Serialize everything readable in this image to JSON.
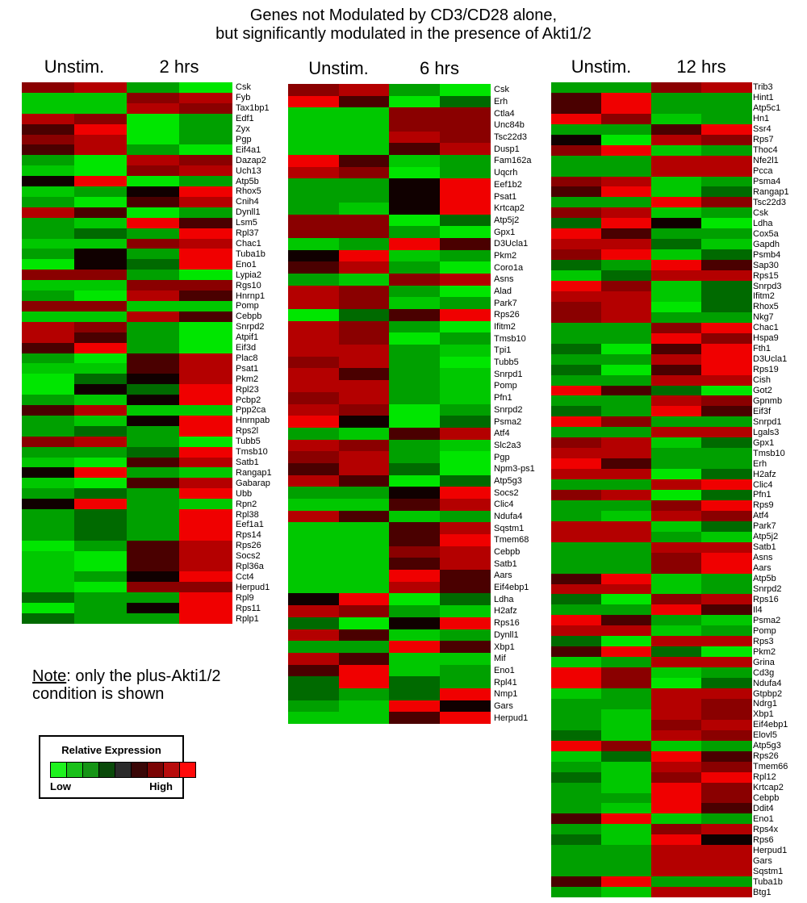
{
  "title": {
    "line1": "Genes not Modulated by CD3/CD28 alone,",
    "line2": "but significantly modulated in the presence of Akti1/2"
  },
  "note": {
    "prefix": "Note",
    "text": ": only the plus-Akti1/2",
    "line2": "condition is shown"
  },
  "legend": {
    "title": "Relative Expression",
    "low": "Low",
    "high": "High",
    "colors": [
      "#1ef21e",
      "#19c019",
      "#169416",
      "#0a4a0a",
      "#2b2b2b",
      "#3a0707",
      "#7a0404",
      "#b80c0c",
      "#ff0a0a"
    ]
  },
  "color_scale": {
    "-4": "#00e600",
    "-3": "#00c800",
    "-2": "#00a000",
    "-1": "#006a00",
    "0": "#100000",
    "1": "#4a0000",
    "2": "#8a0000",
    "3": "#b40000",
    "4": "#f00000"
  },
  "chart_data": [
    {
      "type": "heatmap",
      "title": "2 hrs",
      "columns": [
        "Unstim.",
        "Unstim.",
        "2 hrs",
        "2 hrs"
      ],
      "column_headers": [
        "Unstim.",
        "2 hrs"
      ],
      "value_range": [
        -4,
        4
      ],
      "rows": [
        "Csk",
        "Fyb",
        "Tax1bp1",
        "Edf1",
        "Zyx",
        "Pgp",
        "Eif4a1",
        "Dazap2",
        "Uch13",
        "Atp5b",
        "Rhox5",
        "Cnih4",
        "Dynll1",
        "Lsm5",
        "Rpl37",
        "Chac1",
        "Tuba1b",
        "Eno1",
        "Lypia2",
        "Rgs10",
        "Hnrnp1",
        "Pomp",
        "Cebpb",
        "Snrpd2",
        "Atpif1",
        "Eif3d",
        "Plac8",
        "Psat1",
        "Pkm2",
        "Rpl23",
        "Pcbp2",
        "Ppp2ca",
        "Hnrnpab",
        "Rps2l",
        "Tubb5",
        "Tmsb10",
        "Satb1",
        "Rangap1",
        "Gabarap",
        "Ubb",
        "Rpn2",
        "Rpl38",
        "Eef1a1",
        "Rps14",
        "Rps26",
        "Socs2",
        "Rpl36a",
        "Cct4",
        "Herpud1",
        "Rpl9",
        "Rps11",
        "Rplp1"
      ],
      "values": [
        [
          2,
          3,
          -2,
          -4
        ],
        [
          -3,
          -3,
          2,
          3
        ],
        [
          -3,
          -3,
          3,
          2
        ],
        [
          3,
          2,
          -4,
          -2
        ],
        [
          1,
          4,
          -4,
          -2
        ],
        [
          2,
          3,
          -4,
          -2
        ],
        [
          1,
          3,
          -2,
          -4
        ],
        [
          -2,
          -4,
          3,
          2
        ],
        [
          -3,
          -4,
          2,
          3
        ],
        [
          0,
          4,
          -4,
          -2
        ],
        [
          -3,
          -2,
          0,
          4
        ],
        [
          -2,
          -4,
          1,
          3
        ],
        [
          3,
          1,
          -4,
          -2
        ],
        [
          -2,
          -3,
          4,
          1
        ],
        [
          -2,
          -1,
          -2,
          4
        ],
        [
          -3,
          -3,
          2,
          3
        ],
        [
          -2,
          0,
          -2,
          4
        ],
        [
          -4,
          0,
          -1,
          4
        ],
        [
          2,
          2,
          -2,
          -4
        ],
        [
          -3,
          -3,
          2,
          2
        ],
        [
          -2,
          -4,
          3,
          1
        ],
        [
          2,
          2,
          -3,
          -3
        ],
        [
          -3,
          -3,
          3,
          1
        ],
        [
          3,
          2,
          -2,
          -4
        ],
        [
          3,
          1,
          -2,
          -4
        ],
        [
          1,
          4,
          -2,
          -4
        ],
        [
          -2,
          -4,
          1,
          3
        ],
        [
          -3,
          -3,
          1,
          3
        ],
        [
          -4,
          -1,
          0,
          3
        ],
        [
          -4,
          0,
          -1,
          4
        ],
        [
          -2,
          -3,
          0,
          4
        ],
        [
          1,
          3,
          -3,
          -3
        ],
        [
          -2,
          -3,
          0,
          4
        ],
        [
          -2,
          -1,
          -2,
          4
        ],
        [
          2,
          3,
          -2,
          -4
        ],
        [
          -2,
          -2,
          -1,
          4
        ],
        [
          -3,
          -4,
          1,
          3
        ],
        [
          0,
          4,
          -2,
          -3
        ],
        [
          -3,
          -4,
          1,
          3
        ],
        [
          -2,
          -1,
          -2,
          4
        ],
        [
          0,
          4,
          -2,
          -3
        ],
        [
          -2,
          -1,
          -2,
          4
        ],
        [
          -2,
          -1,
          -2,
          4
        ],
        [
          -2,
          -1,
          -2,
          4
        ],
        [
          -4,
          -2,
          1,
          3
        ],
        [
          -3,
          -4,
          1,
          3
        ],
        [
          -3,
          -4,
          1,
          3
        ],
        [
          -3,
          -2,
          0,
          4
        ],
        [
          -3,
          -4,
          2,
          2
        ],
        [
          -1,
          -2,
          -2,
          4
        ],
        [
          -4,
          -2,
          0,
          4
        ],
        [
          -1,
          -2,
          -2,
          4
        ]
      ]
    },
    {
      "type": "heatmap",
      "title": "6 hrs",
      "columns": [
        "Unstim.",
        "Unstim.",
        "6 hrs",
        "6 hrs"
      ],
      "column_headers": [
        "Unstim.",
        "6 hrs"
      ],
      "value_range": [
        -4,
        4
      ],
      "rows": [
        "Csk",
        "Erh",
        "Ctla4",
        "Unc84b",
        "Tsc22d3",
        "Dusp1",
        "Fam162a",
        "Uqcrh",
        "Eef1b2",
        "Psat1",
        "Krtcap2",
        "Atp5j2",
        "Gpx1",
        "D3Ucla1",
        "Pkm2",
        "Coro1a",
        "Asns",
        "Alad",
        "Park7",
        "Rps26",
        "Ifitm2",
        "Tmsb10",
        "Tpi1",
        "Tubb5",
        "Snrpd1",
        "Pomp",
        "Pfn1",
        "Snrpd2",
        "Psma2",
        "Atf4",
        "Slc2a3",
        "Pgp",
        "Npm3-ps1",
        "Atp5g3",
        "Socs2",
        "Clic4",
        "Ndufa4",
        "Sqstm1",
        "Tmem68",
        "Cebpb",
        "Satb1",
        "Aars",
        "Eif4ebp1",
        "Ldha",
        "H2afz",
        "Rps16",
        "Dynll1",
        "Xbp1",
        "Mif",
        "Eno1",
        "Rpl41",
        "Nmp1",
        "Gars",
        "Herpud1"
      ],
      "values": [
        [
          2,
          3,
          -2,
          -4
        ],
        [
          4,
          1,
          -4,
          -1
        ],
        [
          -3,
          -3,
          2,
          2
        ],
        [
          -3,
          -3,
          2,
          2
        ],
        [
          -3,
          -3,
          3,
          2
        ],
        [
          -3,
          -3,
          1,
          3
        ],
        [
          4,
          1,
          -3,
          -2
        ],
        [
          3,
          2,
          -4,
          -2
        ],
        [
          -2,
          -2,
          0,
          4
        ],
        [
          -2,
          -2,
          0,
          4
        ],
        [
          -2,
          -3,
          0,
          4
        ],
        [
          2,
          2,
          -4,
          -1
        ],
        [
          2,
          2,
          -2,
          -4
        ],
        [
          -3,
          -2,
          4,
          1
        ],
        [
          0,
          4,
          -3,
          -2
        ],
        [
          1,
          3,
          -2,
          -4
        ],
        [
          -2,
          -3,
          2,
          3
        ],
        [
          3,
          2,
          -2,
          -4
        ],
        [
          3,
          2,
          -3,
          -2
        ],
        [
          -4,
          -1,
          1,
          4
        ],
        [
          3,
          2,
          -2,
          -4
        ],
        [
          3,
          2,
          -4,
          -2
        ],
        [
          3,
          3,
          -2,
          -3
        ],
        [
          2,
          3,
          -2,
          -4
        ],
        [
          3,
          1,
          -2,
          -3
        ],
        [
          3,
          3,
          -2,
          -3
        ],
        [
          2,
          3,
          -2,
          -3
        ],
        [
          3,
          2,
          -4,
          -2
        ],
        [
          4,
          0,
          -4,
          -1
        ],
        [
          -2,
          -3,
          1,
          3
        ],
        [
          3,
          2,
          -2,
          -3
        ],
        [
          2,
          3,
          -2,
          -4
        ],
        [
          1,
          3,
          -1,
          -4
        ],
        [
          3,
          1,
          -4,
          -1
        ],
        [
          -2,
          -2,
          0,
          4
        ],
        [
          -3,
          -3,
          1,
          3
        ],
        [
          3,
          1,
          -3,
          -2
        ],
        [
          -3,
          -3,
          1,
          3
        ],
        [
          -3,
          -3,
          1,
          4
        ],
        [
          -3,
          -3,
          2,
          3
        ],
        [
          -3,
          -3,
          1,
          3
        ],
        [
          -3,
          -3,
          4,
          1
        ],
        [
          -3,
          -3,
          3,
          1
        ],
        [
          0,
          4,
          -4,
          -1
        ],
        [
          3,
          2,
          -2,
          -3
        ],
        [
          -1,
          -4,
          0,
          4
        ],
        [
          3,
          1,
          -3,
          -2
        ],
        [
          -2,
          -2,
          4,
          1
        ],
        [
          3,
          1,
          -3,
          -3
        ],
        [
          1,
          4,
          -3,
          -2
        ],
        [
          -1,
          4,
          -1,
          -2
        ],
        [
          -1,
          -2,
          -1,
          4
        ],
        [
          -2,
          -3,
          4,
          0
        ],
        [
          -3,
          -3,
          1,
          4
        ]
      ]
    },
    {
      "type": "heatmap",
      "title": "12 hrs",
      "columns": [
        "Unstim.",
        "Unstim.",
        "12 hrs",
        "12 hrs"
      ],
      "column_headers": [
        "Unstim.",
        "12 hrs"
      ],
      "value_range": [
        -4,
        4
      ],
      "rows": [
        "Trib3",
        "Hint1",
        "Atp5c1",
        "Hn1",
        "Ssr4",
        "Rps7",
        "Thoc4",
        "Nfe2l1",
        "Pcca",
        "Psma4",
        "Rangap1",
        "Tsc22d3",
        "Csk",
        "Ldha",
        "Cox5a",
        "Gapdh",
        "Psmb4",
        "Sap30",
        "Rps15",
        "Snrpd3",
        "Ifitm2",
        "Rhox5",
        "Nkg7",
        "Chac1",
        "Hspa9",
        "Fth1",
        "D3Ucla1",
        "Rps19",
        "Cish",
        "Got2",
        "Gpnmb",
        "Eif3f",
        "Snrpd1",
        "Lgals3",
        "Gpx1",
        "Tmsb10",
        "Erh",
        "H2afz",
        "Clic4",
        "Pfn1",
        "Rps9",
        "Atf4",
        "Park7",
        "Atp5j2",
        "Satb1",
        "Asns",
        "Aars",
        "Atp5b",
        "Snrpd2",
        "Rps16",
        "Il4",
        "Psma2",
        "Pomp",
        "Rps3",
        "Pkm2",
        "Grina",
        "Cd3g",
        "Ndufa4",
        "Gtpbp2",
        "Ndrg1",
        "Xbp1",
        "Eif4ebp1",
        "Elovl5",
        "Atp5g3",
        "Rps26",
        "Tmem66",
        "Rpl12",
        "Krtcap2",
        "Cebpb",
        "Ddit4",
        "Eno1",
        "Rps4x",
        "Rps6",
        "Herpud1",
        "Gars",
        "Sqstm1",
        "Tuba1b",
        "Btg1"
      ],
      "values": [
        [
          -2,
          -2,
          2,
          3
        ],
        [
          1,
          4,
          -2,
          -2
        ],
        [
          1,
          4,
          -2,
          -2
        ],
        [
          4,
          2,
          -3,
          -2
        ],
        [
          -2,
          -2,
          1,
          4
        ],
        [
          0,
          -4,
          3,
          2
        ],
        [
          2,
          4,
          -3,
          -2
        ],
        [
          -2,
          -2,
          3,
          3
        ],
        [
          -2,
          -2,
          3,
          3
        ],
        [
          2,
          3,
          -3,
          -2
        ],
        [
          1,
          4,
          -3,
          -1
        ],
        [
          -2,
          -2,
          4,
          2
        ],
        [
          2,
          3,
          -3,
          -2
        ],
        [
          -1,
          4,
          0,
          -4
        ],
        [
          4,
          1,
          -2,
          -2
        ],
        [
          3,
          3,
          -1,
          -3
        ],
        [
          2,
          4,
          -3,
          -1
        ],
        [
          -1,
          -2,
          4,
          1
        ],
        [
          -3,
          -1,
          3,
          3
        ],
        [
          4,
          2,
          -3,
          -1
        ],
        [
          3,
          3,
          -3,
          -1
        ],
        [
          2,
          3,
          -4,
          -1
        ],
        [
          2,
          3,
          -2,
          -2
        ],
        [
          -2,
          -2,
          2,
          4
        ],
        [
          -2,
          -2,
          4,
          2
        ],
        [
          -1,
          -4,
          1,
          4
        ],
        [
          -2,
          -2,
          3,
          4
        ],
        [
          -1,
          -4,
          1,
          4
        ],
        [
          -2,
          -2,
          3,
          3
        ],
        [
          4,
          1,
          -1,
          -4
        ],
        [
          -2,
          -2,
          3,
          2
        ],
        [
          -1,
          -2,
          4,
          1
        ],
        [
          4,
          2,
          -2,
          -2
        ],
        [
          -2,
          -2,
          3,
          3
        ],
        [
          2,
          3,
          -3,
          -1
        ],
        [
          3,
          3,
          -2,
          -2
        ],
        [
          4,
          1,
          -2,
          -2
        ],
        [
          3,
          3,
          -4,
          -1
        ],
        [
          -2,
          -2,
          3,
          4
        ],
        [
          2,
          3,
          -4,
          -1
        ],
        [
          -2,
          -2,
          2,
          4
        ],
        [
          -2,
          -3,
          3,
          2
        ],
        [
          3,
          3,
          -3,
          -1
        ],
        [
          3,
          3,
          -2,
          -3
        ],
        [
          -2,
          -2,
          3,
          3
        ],
        [
          -2,
          -2,
          2,
          4
        ],
        [
          -2,
          -2,
          2,
          4
        ],
        [
          1,
          4,
          -3,
          -2
        ],
        [
          3,
          3,
          -3,
          -2
        ],
        [
          -1,
          -4,
          2,
          3
        ],
        [
          -2,
          -2,
          4,
          1
        ],
        [
          4,
          1,
          -2,
          -3
        ],
        [
          3,
          3,
          -3,
          -2
        ],
        [
          -1,
          -4,
          3,
          3
        ],
        [
          1,
          4,
          -1,
          -4
        ],
        [
          -3,
          -2,
          3,
          3
        ],
        [
          4,
          2,
          -3,
          -2
        ],
        [
          4,
          2,
          -4,
          -1
        ],
        [
          -3,
          -2,
          3,
          3
        ],
        [
          -2,
          -2,
          3,
          2
        ],
        [
          -2,
          -3,
          3,
          2
        ],
        [
          -2,
          -3,
          2,
          3
        ],
        [
          -1,
          -3,
          3,
          2
        ],
        [
          4,
          2,
          -3,
          -2
        ],
        [
          -3,
          -1,
          4,
          1
        ],
        [
          -2,
          -3,
          3,
          2
        ],
        [
          -1,
          -3,
          2,
          4
        ],
        [
          -2,
          -3,
          4,
          2
        ],
        [
          -2,
          -2,
          4,
          2
        ],
        [
          -2,
          -3,
          4,
          1
        ],
        [
          1,
          4,
          -3,
          -2
        ],
        [
          -2,
          -3,
          2,
          3
        ],
        [
          -1,
          -3,
          4,
          0
        ],
        [
          -2,
          -2,
          3,
          3
        ],
        [
          -2,
          -2,
          3,
          3
        ],
        [
          -2,
          -2,
          3,
          3
        ],
        [
          1,
          4,
          -2,
          -2
        ],
        [
          -2,
          -3,
          3,
          3
        ]
      ]
    }
  ]
}
